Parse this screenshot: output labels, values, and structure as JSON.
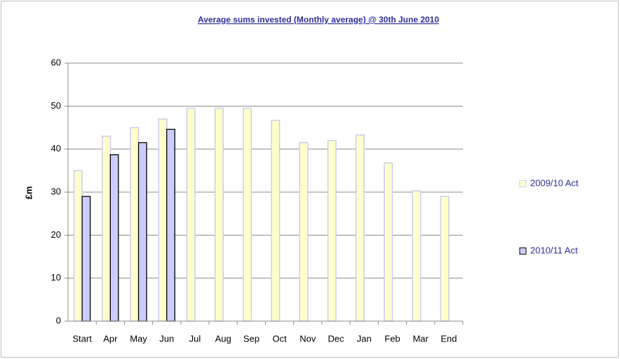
{
  "chart_data": {
    "type": "bar",
    "title": "Average sums invested (Monthly average) @ 30th June 2010",
    "y_label": "£m",
    "categories": [
      "Start",
      "Apr",
      "May",
      "Jun",
      "Jul",
      "Aug",
      "Sep",
      "Oct",
      "Nov",
      "Dec",
      "Jan",
      "Feb",
      "Mar",
      "End"
    ],
    "series": [
      {
        "name": "2009/10 Act",
        "color": "#ffffcc",
        "values": [
          35,
          43,
          45,
          47,
          49.5,
          49.5,
          49.5,
          46.7,
          41.5,
          42,
          43.3,
          36.8,
          30.3,
          29
        ]
      },
      {
        "name": "2010/11 Act",
        "color": "#ccccff",
        "values": [
          29,
          38.7,
          41.5,
          44.6,
          null,
          null,
          null,
          null,
          null,
          null,
          null,
          null,
          null,
          null
        ]
      }
    ],
    "ylim": [
      0,
      60
    ],
    "yticks": [
      0,
      10,
      20,
      30,
      40,
      50,
      60
    ],
    "grid": true,
    "legend": "right"
  }
}
